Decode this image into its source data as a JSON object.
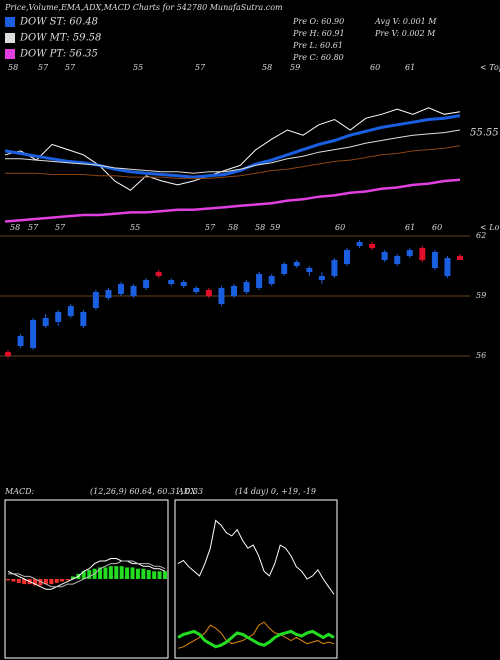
{
  "header": {
    "title": "Price,Volume,EMA,ADX,MACD Charts for 542780 MunafaSutra.com",
    "stats": [
      "Pre O: 60.90",
      "Pre H: 60.91",
      "Pre L: 60.61",
      "Pre C: 60.80",
      "Avg V: 0.001 M",
      "Pre V: 0.002 M"
    ]
  },
  "chart_data": [
    {
      "type": "line",
      "ylim": [
        50,
        63
      ],
      "top_labels": [
        "58",
        "57",
        "57",
        "55",
        "57",
        "58",
        "59",
        "60",
        "61"
      ],
      "low_labels": [
        "58",
        "57",
        "57",
        "55",
        "57",
        "58",
        "58",
        "59",
        "60",
        "61",
        "60"
      ],
      "tops_marker": "< Tops",
      "lows_marker": "< Lows",
      "price_label": "55.55",
      "series": [
        {
          "color": "#ffffff",
          "values": [
            55.9,
            56.2,
            55.5,
            56.7,
            56.3,
            55.9,
            55.1,
            53.9,
            53.2,
            54.3,
            53.9,
            53.6,
            53.9,
            54.3,
            54.7,
            55.1,
            56.3,
            57.1,
            57.8,
            57.4,
            58.2,
            58.6,
            57.8,
            58.7,
            59.0,
            59.4,
            59.0,
            59.5,
            59.0,
            59.2
          ]
        },
        {
          "name": "DOW ST: 60.48",
          "color": "#1a5fe0",
          "values": [
            56.2,
            56.0,
            55.8,
            55.6,
            55.4,
            55.3,
            55.1,
            54.8,
            54.6,
            54.5,
            54.4,
            54.3,
            54.2,
            54.3,
            54.4,
            54.7,
            55.2,
            55.5,
            55.9,
            56.3,
            56.7,
            57.0,
            57.4,
            57.7,
            58.0,
            58.2,
            58.4,
            58.6,
            58.7,
            58.9
          ]
        },
        {
          "name": "DOW MT: 59.58",
          "color": "#dddddd",
          "values": [
            55.6,
            55.6,
            55.5,
            55.4,
            55.3,
            55.2,
            55.1,
            54.9,
            54.8,
            54.7,
            54.6,
            54.6,
            54.5,
            54.6,
            54.6,
            54.8,
            55.1,
            55.3,
            55.6,
            55.8,
            56.1,
            56.3,
            56.5,
            56.8,
            57.0,
            57.2,
            57.4,
            57.5,
            57.6,
            57.8
          ]
        },
        {
          "color": "#8b4513",
          "values": [
            54.5,
            54.5,
            54.5,
            54.4,
            54.4,
            54.4,
            54.3,
            54.3,
            54.2,
            54.2,
            54.2,
            54.1,
            54.1,
            54.1,
            54.2,
            54.3,
            54.5,
            54.7,
            54.8,
            55.0,
            55.2,
            55.4,
            55.5,
            55.7,
            55.9,
            56.0,
            56.2,
            56.3,
            56.4,
            56.6
          ]
        },
        {
          "name": "DOW PT: 56.35",
          "color": "#e040e0",
          "values": [
            50.8,
            50.9,
            51.0,
            51.1,
            51.2,
            51.3,
            51.3,
            51.4,
            51.5,
            51.5,
            51.6,
            51.7,
            51.7,
            51.8,
            51.9,
            52.0,
            52.1,
            52.2,
            52.4,
            52.5,
            52.7,
            52.8,
            53.0,
            53.1,
            53.3,
            53.4,
            53.6,
            53.7,
            53.9,
            54.0
          ]
        }
      ]
    },
    {
      "type": "candlestick",
      "ylim": [
        49.3,
        62.2
      ],
      "yticks": [
        56,
        59,
        62
      ],
      "grid": true,
      "grid_color": "#8b5a2b",
      "up_color": "#1a5fe0",
      "down_color": "#e0102a",
      "open": [
        56.2,
        56.5,
        56.4,
        57.5,
        57.7,
        58.0,
        57.5,
        58.4,
        58.9,
        59.1,
        59.0,
        59.4,
        60.2,
        59.6,
        59.5,
        59.2,
        59.3,
        58.6,
        59.0,
        59.2,
        59.4,
        59.6,
        60.1,
        60.5,
        60.2,
        59.8,
        60.0,
        60.6,
        61.5,
        61.6,
        60.8,
        60.6,
        61.0,
        61.4,
        60.4,
        60.0,
        61.0
      ],
      "high": [
        56.3,
        57.1,
        57.9,
        58.1,
        58.3,
        58.6,
        58.3,
        59.3,
        59.4,
        59.7,
        59.6,
        59.9,
        60.3,
        59.9,
        59.8,
        59.5,
        59.4,
        59.5,
        59.6,
        59.8,
        60.2,
        60.1,
        60.7,
        60.8,
        60.5,
        60.2,
        60.9,
        61.4,
        61.8,
        61.7,
        61.3,
        61.1,
        61.4,
        61.5,
        61.3,
        61.0,
        61.1
      ],
      "low": [
        55.9,
        56.4,
        56.3,
        57.4,
        57.5,
        57.9,
        57.4,
        58.3,
        58.8,
        59.0,
        58.9,
        59.3,
        59.9,
        59.5,
        59.4,
        59.1,
        58.9,
        58.5,
        58.9,
        59.1,
        59.3,
        59.5,
        60.0,
        60.4,
        60.0,
        59.6,
        59.9,
        60.5,
        61.4,
        61.3,
        60.7,
        60.5,
        60.9,
        60.7,
        60.3,
        59.9,
        60.8
      ],
      "close": [
        56.0,
        57.0,
        57.8,
        57.9,
        58.2,
        58.5,
        58.2,
        59.2,
        59.3,
        59.6,
        59.5,
        59.8,
        60.0,
        59.8,
        59.7,
        59.4,
        59.0,
        59.4,
        59.5,
        59.7,
        60.1,
        60.0,
        60.6,
        60.7,
        60.4,
        60.0,
        60.8,
        61.3,
        61.7,
        61.4,
        61.2,
        61.0,
        61.3,
        60.8,
        61.2,
        60.9,
        60.8
      ]
    },
    {
      "type": "macd",
      "title": "MACD:",
      "subtitle": "(12,26,9) 60.64, 60.31, 0.33",
      "ylim": [
        -3,
        3
      ],
      "up_color": "#22dd22",
      "down_color": "#ff3030",
      "histogram": [
        -0.05,
        -0.1,
        -0.15,
        -0.2,
        -0.2,
        -0.25,
        -0.25,
        -0.2,
        -0.2,
        -0.15,
        -0.1,
        -0.05,
        0.1,
        0.2,
        0.3,
        0.35,
        0.4,
        0.45,
        0.45,
        0.5,
        0.5,
        0.5,
        0.45,
        0.45,
        0.4,
        0.4,
        0.35,
        0.3,
        0.3,
        0.3
      ],
      "series": [
        {
          "color": "#ffffff",
          "values": [
            0.3,
            0.2,
            0.1,
            0.0,
            -0.1,
            -0.2,
            -0.3,
            -0.4,
            -0.4,
            -0.3,
            -0.2,
            -0.1,
            0.0,
            0.1,
            0.3,
            0.4,
            0.6,
            0.7,
            0.7,
            0.8,
            0.8,
            0.7,
            0.7,
            0.6,
            0.6,
            0.5,
            0.5,
            0.4,
            0.4,
            0.3
          ]
        },
        {
          "color": "#bbbbbb",
          "values": [
            0.2,
            0.2,
            0.2,
            0.1,
            0.1,
            0.0,
            -0.1,
            -0.2,
            -0.3,
            -0.3,
            -0.3,
            -0.2,
            -0.2,
            -0.1,
            0.0,
            0.1,
            0.2,
            0.4,
            0.5,
            0.6,
            0.6,
            0.7,
            0.7,
            0.7,
            0.6,
            0.6,
            0.6,
            0.5,
            0.5,
            0.4
          ]
        }
      ]
    },
    {
      "type": "adx",
      "title": "ADX",
      "subtitle": "(14  day) 0, +19, -19",
      "ylim": [
        0,
        100
      ],
      "series": [
        {
          "color": "#ffffff",
          "values": [
            60,
            62,
            58,
            55,
            52,
            60,
            70,
            88,
            85,
            80,
            78,
            82,
            75,
            70,
            72,
            65,
            55,
            52,
            60,
            72,
            70,
            65,
            58,
            55,
            50,
            52,
            56,
            50,
            45,
            40
          ]
        },
        {
          "color": "#e08a10",
          "values": [
            5,
            6,
            8,
            10,
            12,
            15,
            20,
            18,
            15,
            10,
            8,
            9,
            10,
            12,
            14,
            20,
            22,
            18,
            15,
            14,
            12,
            10,
            12,
            10,
            8,
            9,
            10,
            8,
            9,
            8
          ]
        },
        {
          "color": "#22dd22",
          "values": [
            12,
            14,
            15,
            16,
            14,
            10,
            8,
            6,
            7,
            9,
            12,
            15,
            14,
            12,
            10,
            8,
            7,
            9,
            12,
            14,
            15,
            16,
            14,
            13,
            15,
            16,
            14,
            12,
            14,
            12
          ]
        }
      ]
    }
  ]
}
